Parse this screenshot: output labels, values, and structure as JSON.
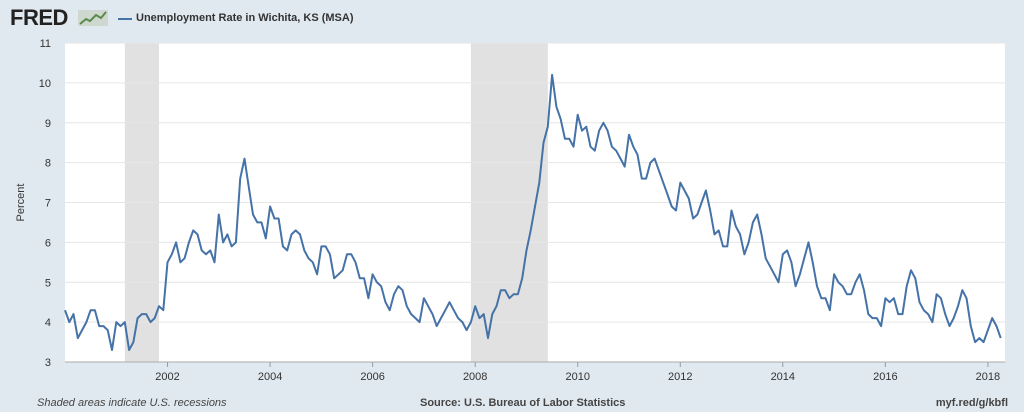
{
  "header": {
    "logo_text": "FRED",
    "legend_label": "Unemployment Rate in Wichita, KS (MSA)"
  },
  "footer": {
    "left": "Shaded areas indicate U.S. recessions",
    "source": "Source: U.S. Bureau of Labor Statistics",
    "link": "myf.red/g/kbfl"
  },
  "colors": {
    "line": "#4572a7",
    "recession": "#e1e1e1",
    "background": "#e1e9f0",
    "plot": "#ffffff"
  },
  "chart_data": {
    "type": "line",
    "title": "",
    "xlabel": "",
    "ylabel": "Percent",
    "xlim": [
      2000.0,
      2018.3333
    ],
    "ylim": [
      3,
      11
    ],
    "yticks": [
      3,
      4,
      5,
      6,
      7,
      8,
      9,
      10,
      11
    ],
    "xticks": [
      "2002",
      "2004",
      "2006",
      "2008",
      "2010",
      "2012",
      "2014",
      "2016",
      "2018"
    ],
    "grid": true,
    "legend": "top-left",
    "recessions": [
      {
        "start": "2001-03",
        "end": "2001-11"
      },
      {
        "start": "2007-12",
        "end": "2009-06"
      }
    ],
    "series": [
      {
        "name": "Unemployment Rate in Wichita, KS (MSA)",
        "start": "2000-01",
        "frequency": "monthly",
        "values": [
          4.3,
          4.0,
          4.2,
          3.6,
          3.8,
          4.0,
          4.3,
          4.3,
          3.9,
          3.9,
          3.8,
          3.3,
          4.0,
          3.9,
          4.0,
          3.3,
          3.5,
          4.1,
          4.2,
          4.2,
          4.0,
          4.1,
          4.4,
          4.3,
          5.5,
          5.7,
          6.0,
          5.5,
          5.6,
          6.0,
          6.3,
          6.2,
          5.8,
          5.7,
          5.8,
          5.5,
          6.7,
          6.0,
          6.2,
          5.9,
          6.0,
          7.6,
          8.1,
          7.4,
          6.7,
          6.5,
          6.5,
          6.1,
          6.9,
          6.6,
          6.6,
          5.9,
          5.8,
          6.2,
          6.3,
          6.2,
          5.8,
          5.6,
          5.5,
          5.2,
          5.9,
          5.9,
          5.7,
          5.1,
          5.2,
          5.3,
          5.7,
          5.7,
          5.5,
          5.1,
          5.1,
          4.6,
          5.2,
          5.0,
          4.9,
          4.5,
          4.3,
          4.7,
          4.9,
          4.8,
          4.4,
          4.2,
          4.1,
          4.0,
          4.6,
          4.4,
          4.2,
          3.9,
          4.1,
          4.3,
          4.5,
          4.3,
          4.1,
          4.0,
          3.8,
          4.0,
          4.4,
          4.1,
          4.2,
          3.6,
          4.2,
          4.4,
          4.8,
          4.8,
          4.6,
          4.7,
          4.7,
          5.1,
          5.8,
          6.3,
          6.9,
          7.5,
          8.5,
          8.9,
          10.2,
          9.4,
          9.1,
          8.6,
          8.6,
          8.4,
          9.2,
          8.8,
          8.9,
          8.4,
          8.3,
          8.8,
          9.0,
          8.8,
          8.4,
          8.3,
          8.1,
          7.9,
          8.7,
          8.4,
          8.2,
          7.6,
          7.6,
          8.0,
          8.1,
          7.8,
          7.5,
          7.2,
          6.9,
          6.8,
          7.5,
          7.3,
          7.1,
          6.6,
          6.7,
          7.0,
          7.3,
          6.8,
          6.2,
          6.3,
          5.9,
          5.9,
          6.8,
          6.4,
          6.2,
          5.7,
          6.0,
          6.5,
          6.7,
          6.2,
          5.6,
          5.4,
          5.2,
          5.0,
          5.7,
          5.8,
          5.5,
          4.9,
          5.2,
          5.6,
          6.0,
          5.5,
          4.9,
          4.6,
          4.6,
          4.3,
          5.2,
          5.0,
          4.9,
          4.7,
          4.7,
          5.0,
          5.2,
          4.8,
          4.2,
          4.1,
          4.1,
          3.9,
          4.6,
          4.5,
          4.6,
          4.2,
          4.2,
          4.9,
          5.3,
          5.1,
          4.5,
          4.3,
          4.2,
          4.0,
          4.7,
          4.6,
          4.2,
          3.9,
          4.1,
          4.4,
          4.8,
          4.6,
          3.9,
          3.5,
          3.6,
          3.5,
          3.8,
          4.1,
          3.9,
          3.6
        ]
      }
    ]
  }
}
